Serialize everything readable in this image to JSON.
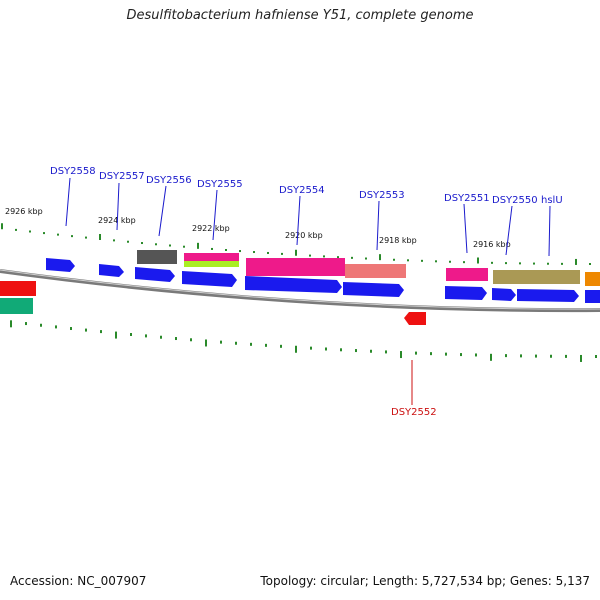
{
  "title": "Desulfitobacterium hafniense Y51, complete genome",
  "footer": {
    "accession": "Accession: NC_007907",
    "summary": "Topology: circular; Length: 5,727,534 bp; Genes: 5,137"
  },
  "colors": {
    "backbone": "#888888",
    "tick": "#2a8a2a",
    "forward_gene": "#1a1aee",
    "reverse_gene": "#ee1111",
    "label_forward": "#1a1acc",
    "label_reverse": "#cc1111"
  },
  "scale": {
    "unit": "kbp",
    "labels": [
      "2926 kbp",
      "2924 kbp",
      "2922 kbp",
      "2920 kbp",
      "2918 kbp",
      "2916 kbp"
    ]
  },
  "genes": [
    {
      "name": "DSY2558",
      "strand": "+"
    },
    {
      "name": "DSY2557",
      "strand": "+"
    },
    {
      "name": "DSY2556",
      "strand": "+"
    },
    {
      "name": "DSY2555",
      "strand": "+"
    },
    {
      "name": "DSY2554",
      "strand": "+"
    },
    {
      "name": "DSY2553",
      "strand": "+"
    },
    {
      "name": "DSY2552",
      "strand": "-"
    },
    {
      "name": "DSY2551",
      "strand": "+"
    },
    {
      "name": "DSY2550",
      "strand": "+"
    },
    {
      "name": "hslU",
      "strand": "+"
    }
  ]
}
